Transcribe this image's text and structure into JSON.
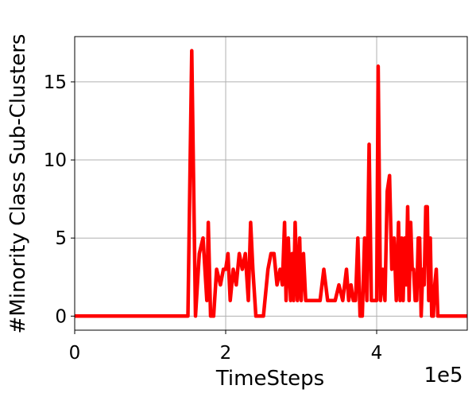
{
  "chart_data": {
    "type": "line",
    "title": "",
    "xlabel": "TimeSteps",
    "ylabel": "#Minority Class Sub-Clusters",
    "x_offset_label": "1e5",
    "xlim": [
      0,
      520000
    ],
    "ylim": [
      -0.9,
      17.9
    ],
    "x_ticks": [
      {
        "value": 0,
        "label": "0"
      },
      {
        "value": 200000,
        "label": "2"
      },
      {
        "value": 400000,
        "label": "4"
      }
    ],
    "y_ticks": [
      {
        "value": 0,
        "label": "0"
      },
      {
        "value": 5,
        "label": "5"
      },
      {
        "value": 10,
        "label": "10"
      },
      {
        "value": 15,
        "label": "15"
      }
    ],
    "grid": true,
    "series": [
      {
        "color": "#ff0000",
        "x": [
          0,
          150000,
          155000,
          160000,
          165000,
          170000,
          175000,
          177000,
          180000,
          184000,
          188000,
          193000,
          197000,
          200000,
          203000,
          206000,
          210000,
          214000,
          218000,
          222000,
          226000,
          230000,
          233000,
          236000,
          240000,
          244000,
          250000,
          256000,
          260000,
          264000,
          268000,
          272000,
          275000,
          278000,
          280000,
          283000,
          286000,
          288000,
          290000,
          292000,
          295000,
          298000,
          300000,
          303000,
          306000,
          310000,
          315000,
          320000,
          325000,
          330000,
          335000,
          340000,
          345000,
          350000,
          355000,
          360000,
          363000,
          366000,
          369000,
          372000,
          375000,
          378000,
          381000,
          384000,
          387000,
          390000,
          393000,
          396000,
          398000,
          400000,
          402000,
          405000,
          408000,
          411000,
          414000,
          417000,
          420000,
          423000,
          426000,
          429000,
          431000,
          433000,
          435000,
          437000,
          439000,
          441000,
          443000,
          445000,
          447000,
          449000,
          451000,
          453000,
          455000,
          457000,
          459000,
          461000,
          463000,
          465000,
          467000,
          469000,
          471000,
          473000,
          475000,
          477000,
          479000,
          481000,
          483000,
          485000,
          487000,
          489000,
          491000,
          493000,
          495000,
          500000,
          510000,
          520000
        ],
        "y": [
          0,
          0,
          17,
          0,
          4,
          5,
          1,
          6,
          0,
          0,
          3,
          2,
          3,
          3,
          4,
          1,
          3,
          2,
          4,
          3,
          4,
          1,
          6,
          3,
          0,
          0,
          0,
          3,
          4,
          4,
          2,
          3,
          2,
          6,
          1,
          5,
          1,
          4,
          1,
          6,
          1,
          5,
          1,
          4,
          1,
          1,
          1,
          1,
          1,
          3,
          1,
          1,
          1,
          2,
          1,
          3,
          1,
          2,
          1,
          1,
          5,
          0,
          0,
          5,
          1,
          11,
          1,
          1,
          1,
          1,
          16,
          1,
          3,
          1,
          8,
          9,
          3,
          5,
          1,
          6,
          1,
          5,
          1,
          5,
          2,
          7,
          1,
          6,
          3,
          3,
          1,
          1,
          5,
          5,
          0,
          3,
          2,
          7,
          7,
          1,
          5,
          0,
          0,
          2,
          3,
          0,
          0,
          0,
          0,
          0,
          0,
          0,
          0,
          0,
          0,
          0
        ]
      }
    ]
  }
}
